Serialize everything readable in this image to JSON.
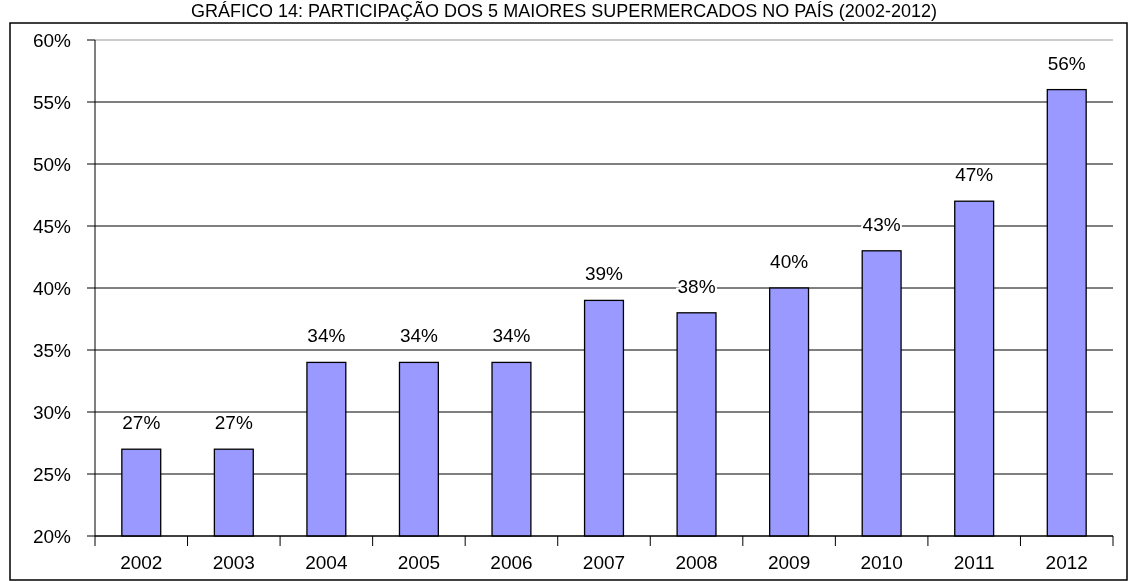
{
  "chart_data": {
    "type": "bar",
    "title": "GRÁFICO 14: PARTICIPAÇÃO DOS 5 MAIORES SUPERMERCADOS NO PAÍS (2002-2012)",
    "categories": [
      "2002",
      "2003",
      "2004",
      "2005",
      "2006",
      "2007",
      "2008",
      "2009",
      "2010",
      "2011",
      "2012"
    ],
    "values": [
      27,
      27,
      34,
      34,
      34,
      39,
      38,
      40,
      43,
      47,
      56
    ],
    "value_labels": [
      "27%",
      "27%",
      "34%",
      "34%",
      "34%",
      "39%",
      "38%",
      "40%",
      "43%",
      "47%",
      "56%"
    ],
    "color": "#9999ff",
    "ylim": [
      20,
      60
    ],
    "yticks": [
      {
        "value": 20,
        "label": "20%"
      },
      {
        "value": 25,
        "label": "25%"
      },
      {
        "value": 30,
        "label": "30%"
      },
      {
        "value": 35,
        "label": "35%"
      },
      {
        "value": 40,
        "label": "40%"
      },
      {
        "value": 45,
        "label": "45%"
      },
      {
        "value": 50,
        "label": "50%"
      },
      {
        "value": 55,
        "label": "55%"
      },
      {
        "value": 60,
        "label": "60%"
      }
    ],
    "grid": "y"
  }
}
